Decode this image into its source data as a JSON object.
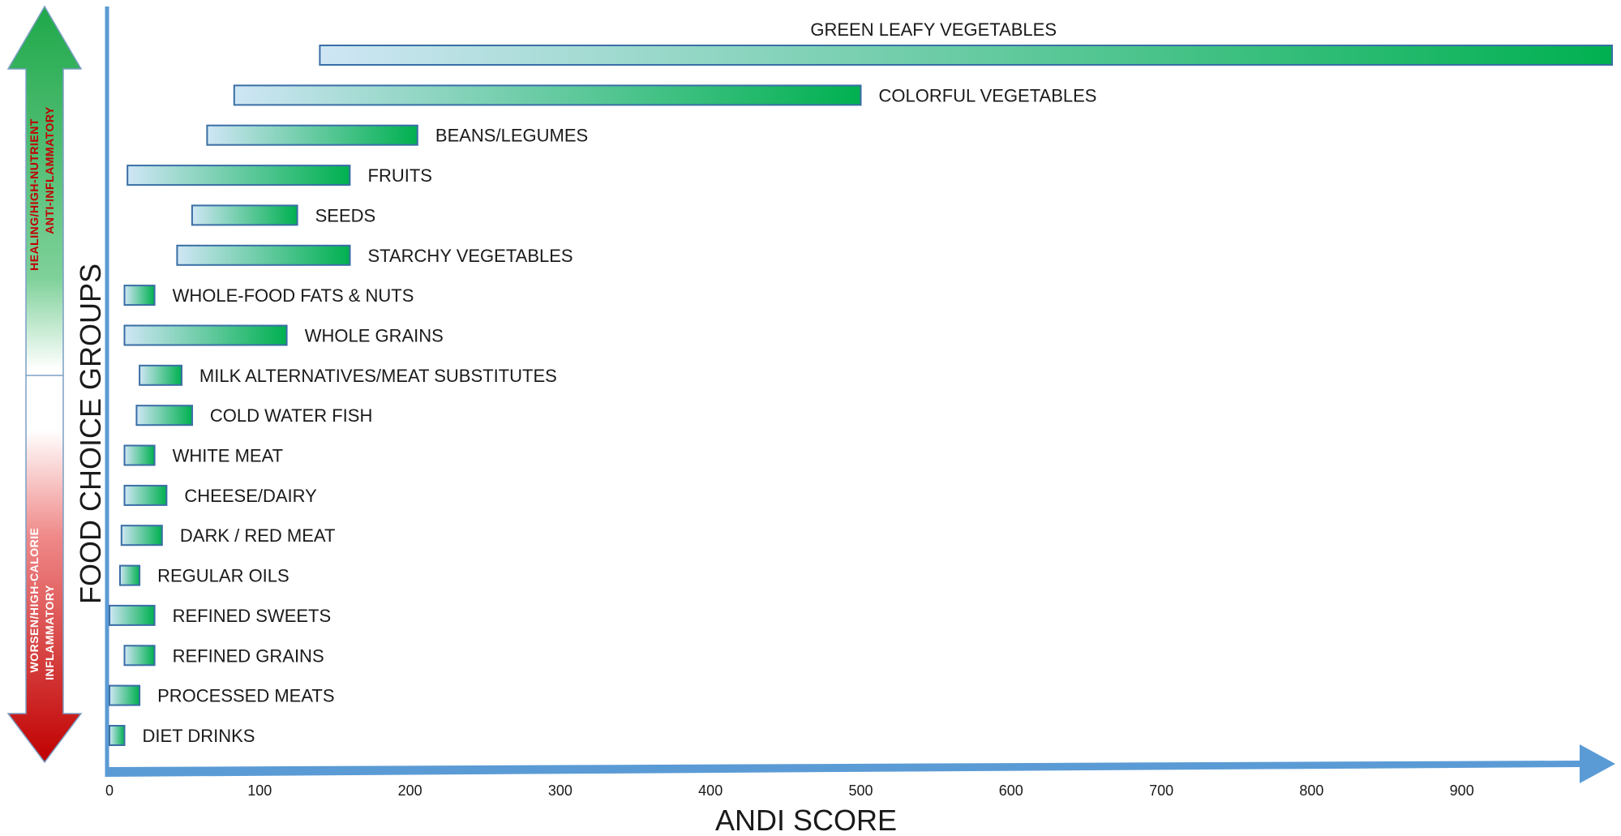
{
  "chart_data": {
    "type": "bar",
    "orientation": "horizontal",
    "bar_style": "floating-range",
    "xlabel": "ANDI SCORE",
    "ylabel": "FOOD CHOICE GROUPS",
    "xlim": [
      0,
      1000
    ],
    "xticks": [
      0,
      100,
      200,
      300,
      400,
      500,
      600,
      700,
      800,
      900
    ],
    "grid": false,
    "bar_gradient": [
      "#cfe6f5",
      "#00b050"
    ],
    "bar_border_color": "#3a6ea5",
    "axis_color": "#5b9bd5",
    "categories": [
      {
        "label": "GREEN LEAFY VEGETABLES",
        "start": 140,
        "end": 1000
      },
      {
        "label": "COLORFUL VEGETABLES",
        "start": 83,
        "end": 500
      },
      {
        "label": "BEANS/LEGUMES",
        "start": 65,
        "end": 205
      },
      {
        "label": "FRUITS",
        "start": 12,
        "end": 160
      },
      {
        "label": "SEEDS",
        "start": 55,
        "end": 125
      },
      {
        "label": "STARCHY VEGETABLES",
        "start": 45,
        "end": 160
      },
      {
        "label": "WHOLE-FOOD FATS & NUTS",
        "start": 10,
        "end": 30
      },
      {
        "label": "WHOLE GRAINS",
        "start": 10,
        "end": 118
      },
      {
        "label": "MILK ALTERNATIVES/MEAT SUBSTITUTES",
        "start": 20,
        "end": 48
      },
      {
        "label": "COLD WATER FISH",
        "start": 18,
        "end": 55
      },
      {
        "label": "WHITE MEAT",
        "start": 10,
        "end": 30
      },
      {
        "label": "CHEESE/DAIRY",
        "start": 10,
        "end": 38
      },
      {
        "label": "DARK / RED MEAT",
        "start": 8,
        "end": 35
      },
      {
        "label": "REGULAR OILS",
        "start": 7,
        "end": 20
      },
      {
        "label": "REFINED SWEETS",
        "start": 0,
        "end": 30
      },
      {
        "label": "REFINED GRAINS",
        "start": 10,
        "end": 30
      },
      {
        "label": "PROCESSED MEATS",
        "start": 0,
        "end": 20
      },
      {
        "label": "DIET DRINKS",
        "start": 0,
        "end": 10
      }
    ]
  },
  "side_scale": {
    "top_text_line1": "HEALING/HIGH-NUTRIENT",
    "top_text_line2": "ANTI-INFLAMMATORY",
    "bottom_text_line1": "WORSEN/HIGH-CALORIE",
    "bottom_text_line2": "INFLAMMATORY",
    "top_color": "#1fa84a",
    "bottom_color": "#c00000",
    "top_text_color": "#c00000",
    "bottom_text_color": "#ffffff"
  }
}
